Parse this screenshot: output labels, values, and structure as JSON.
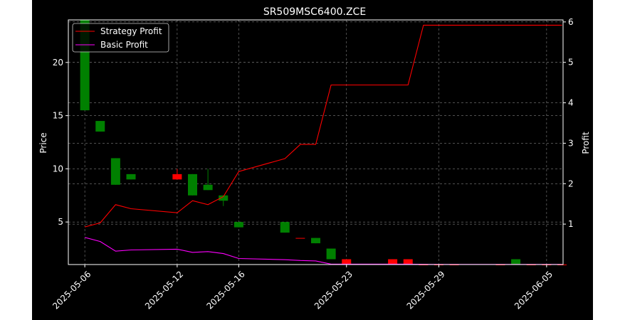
{
  "chart_data": {
    "type": "candlestick",
    "title": "SR509MSC6400.ZCE",
    "xlabel": "",
    "ylabel_left": "Price",
    "ylabel_right": "Profit",
    "x_ticks": [
      "2025-05-06",
      "2025-05-12",
      "2025-05-16",
      "2025-05-23",
      "2025-05-29",
      "2025-06-05"
    ],
    "y_left_ticks": [
      5,
      10,
      15,
      20
    ],
    "y_right_ticks": [
      1,
      2,
      3,
      4,
      5,
      6
    ],
    "y_left_range": [
      1.0,
      24.0
    ],
    "y_right_range": [
      0.0,
      6.05
    ],
    "grid": true,
    "legend_position": "top-left",
    "colors": {
      "background": "#000000",
      "text": "#ffffff",
      "up": "#ff0000",
      "down": "#008000",
      "strategy": "#ff0000",
      "basic": "#ff00ff",
      "grid": "#808080"
    },
    "candles": [
      {
        "date": "2025-05-06",
        "open": 24.0,
        "close": 15.5,
        "high": 24.0,
        "low": 15.5
      },
      {
        "date": "2025-05-07",
        "open": 14.5,
        "close": 13.5,
        "high": 14.5,
        "low": 13.5
      },
      {
        "date": "2025-05-08",
        "open": 11.0,
        "close": 8.5,
        "high": 11.0,
        "low": 8.5
      },
      {
        "date": "2025-05-09",
        "open": 9.5,
        "close": 9.0,
        "high": 9.5,
        "low": 9.0
      },
      {
        "date": "2025-05-12",
        "open": 9.0,
        "close": 9.5,
        "high": 10.0,
        "low": 9.0
      },
      {
        "date": "2025-05-13",
        "open": 9.5,
        "close": 7.5,
        "high": 9.5,
        "low": 7.5
      },
      {
        "date": "2025-05-14",
        "open": 8.5,
        "close": 8.0,
        "high": 10.0,
        "low": 8.0
      },
      {
        "date": "2025-05-15",
        "open": 7.5,
        "close": 7.0,
        "high": 7.5,
        "low": 6.5
      },
      {
        "date": "2025-05-16",
        "open": 5.0,
        "close": 4.5,
        "high": 5.0,
        "low": 4.5
      },
      {
        "date": "2025-05-19",
        "open": 5.0,
        "close": 4.0,
        "high": 5.0,
        "low": 4.0
      },
      {
        "date": "2025-05-20",
        "open": 3.5,
        "close": 3.5,
        "high": 3.5,
        "low": 3.5
      },
      {
        "date": "2025-05-21",
        "open": 3.5,
        "close": 3.0,
        "high": 3.5,
        "low": 3.0
      },
      {
        "date": "2025-05-22",
        "open": 2.5,
        "close": 1.5,
        "high": 2.5,
        "low": 1.5
      },
      {
        "date": "2025-05-23",
        "open": 1.0,
        "close": 1.5,
        "high": 1.5,
        "low": 1.0
      },
      {
        "date": "2025-05-26",
        "open": 1.0,
        "close": 1.5,
        "high": 1.5,
        "low": 1.0
      },
      {
        "date": "2025-05-27",
        "open": 1.0,
        "close": 1.5,
        "high": 1.5,
        "low": 1.0
      },
      {
        "date": "2025-05-28",
        "open": 1.0,
        "close": 1.0,
        "high": 1.0,
        "low": 1.0
      },
      {
        "date": "2025-05-29",
        "open": 1.0,
        "close": 1.0,
        "high": 1.0,
        "low": 1.0
      },
      {
        "date": "2025-05-30",
        "open": 1.0,
        "close": 1.0,
        "high": 1.0,
        "low": 1.0
      },
      {
        "date": "2025-06-02",
        "open": 1.0,
        "close": 1.0,
        "high": 1.0,
        "low": 1.0
      },
      {
        "date": "2025-06-03",
        "open": 1.5,
        "close": 1.0,
        "high": 1.5,
        "low": 1.0
      },
      {
        "date": "2025-06-04",
        "open": 1.0,
        "close": 1.0,
        "high": 1.0,
        "low": 1.0
      },
      {
        "date": "2025-06-05",
        "open": 1.0,
        "close": 1.0,
        "high": 1.0,
        "low": 1.0
      },
      {
        "date": "2025-06-06",
        "open": 1.0,
        "close": 1.0,
        "high": 1.0,
        "low": 1.0
      }
    ],
    "series": [
      {
        "name": "Strategy Profit",
        "color": "#ff0000",
        "values": [
          0.93,
          1.03,
          1.48,
          1.38,
          1.28,
          1.58,
          1.48,
          1.68,
          2.3,
          2.62,
          2.97,
          2.97,
          4.44,
          4.44,
          4.44,
          4.44,
          5.92,
          5.92,
          5.92,
          5.92,
          5.92,
          5.92,
          5.92,
          5.92
        ]
      },
      {
        "name": "Basic Profit",
        "color": "#ff00ff",
        "values": [
          0.67,
          0.57,
          0.33,
          0.36,
          0.38,
          0.3,
          0.32,
          0.27,
          0.15,
          0.12,
          0.1,
          0.09,
          0.01,
          0.01,
          0.01,
          0.01,
          0.005,
          0.003,
          0.003,
          0.003,
          0.003,
          0.003,
          0.003,
          0.003
        ]
      }
    ]
  }
}
